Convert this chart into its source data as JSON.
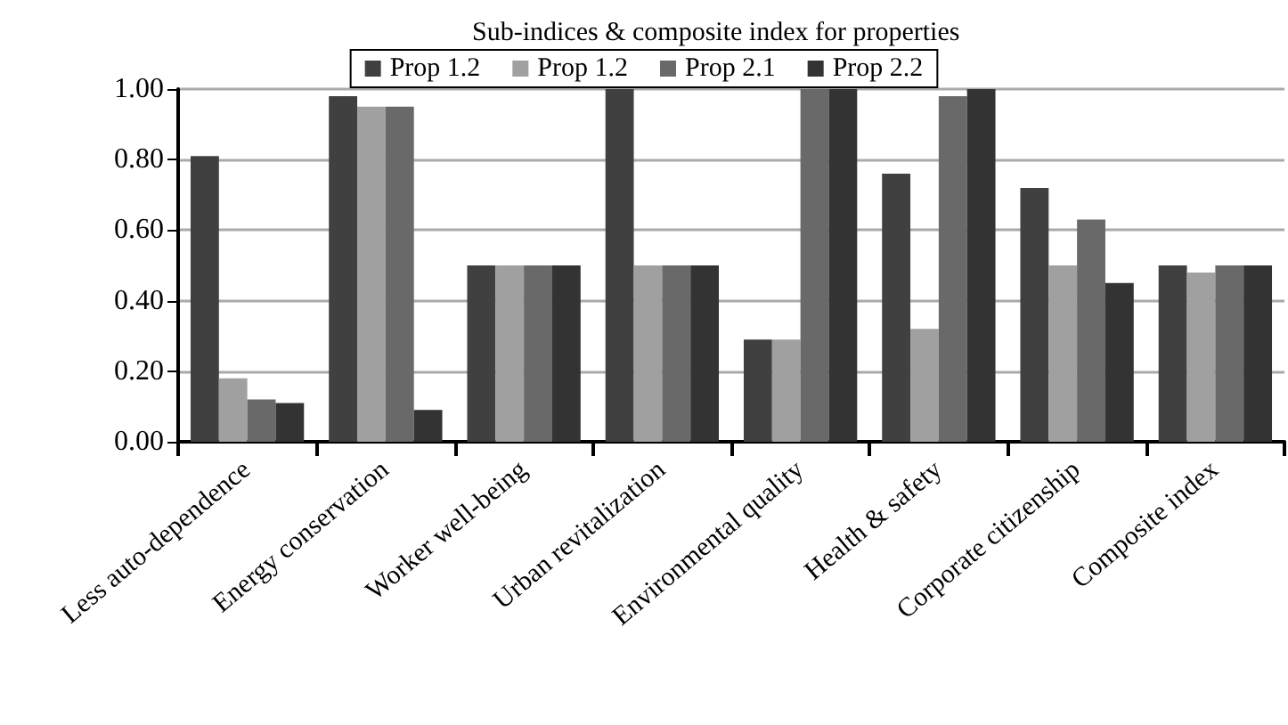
{
  "chart_data": {
    "type": "bar",
    "title": "Sub-indices & composite index for properties",
    "categories": [
      "Less auto-dependence",
      "Energy conservation",
      "Worker well-being",
      "Urban revitalization",
      "Environmental quality",
      "Health & safety",
      "Corporate citizenship",
      "Composite index"
    ],
    "series": [
      {
        "name": "Prop 1.2",
        "color": "#404040",
        "values": [
          0.81,
          0.98,
          0.5,
          1.0,
          0.29,
          0.76,
          0.72,
          0.5
        ]
      },
      {
        "name": "Prop 1.2",
        "color": "#a0a0a0",
        "values": [
          0.18,
          0.95,
          0.5,
          0.5,
          0.29,
          0.32,
          0.5,
          0.48
        ]
      },
      {
        "name": "Prop 2.1",
        "color": "#696969",
        "values": [
          0.12,
          0.95,
          0.5,
          0.5,
          1.0,
          0.98,
          0.63,
          0.5
        ]
      },
      {
        "name": "Prop 2.2",
        "color": "#333333",
        "values": [
          0.11,
          0.09,
          0.5,
          0.5,
          1.0,
          1.0,
          0.45,
          0.5
        ]
      }
    ],
    "ylim": [
      0,
      1
    ],
    "yticks": [
      {
        "value": 0,
        "label": "0.00"
      },
      {
        "value": 0.2,
        "label": "0.20"
      },
      {
        "value": 0.4,
        "label": "0.40"
      },
      {
        "value": 0.6,
        "label": "0.60"
      },
      {
        "value": 0.8,
        "label": "0.80"
      },
      {
        "value": 1,
        "label": "1.00"
      }
    ],
    "grid": "y",
    "legend": "top"
  }
}
